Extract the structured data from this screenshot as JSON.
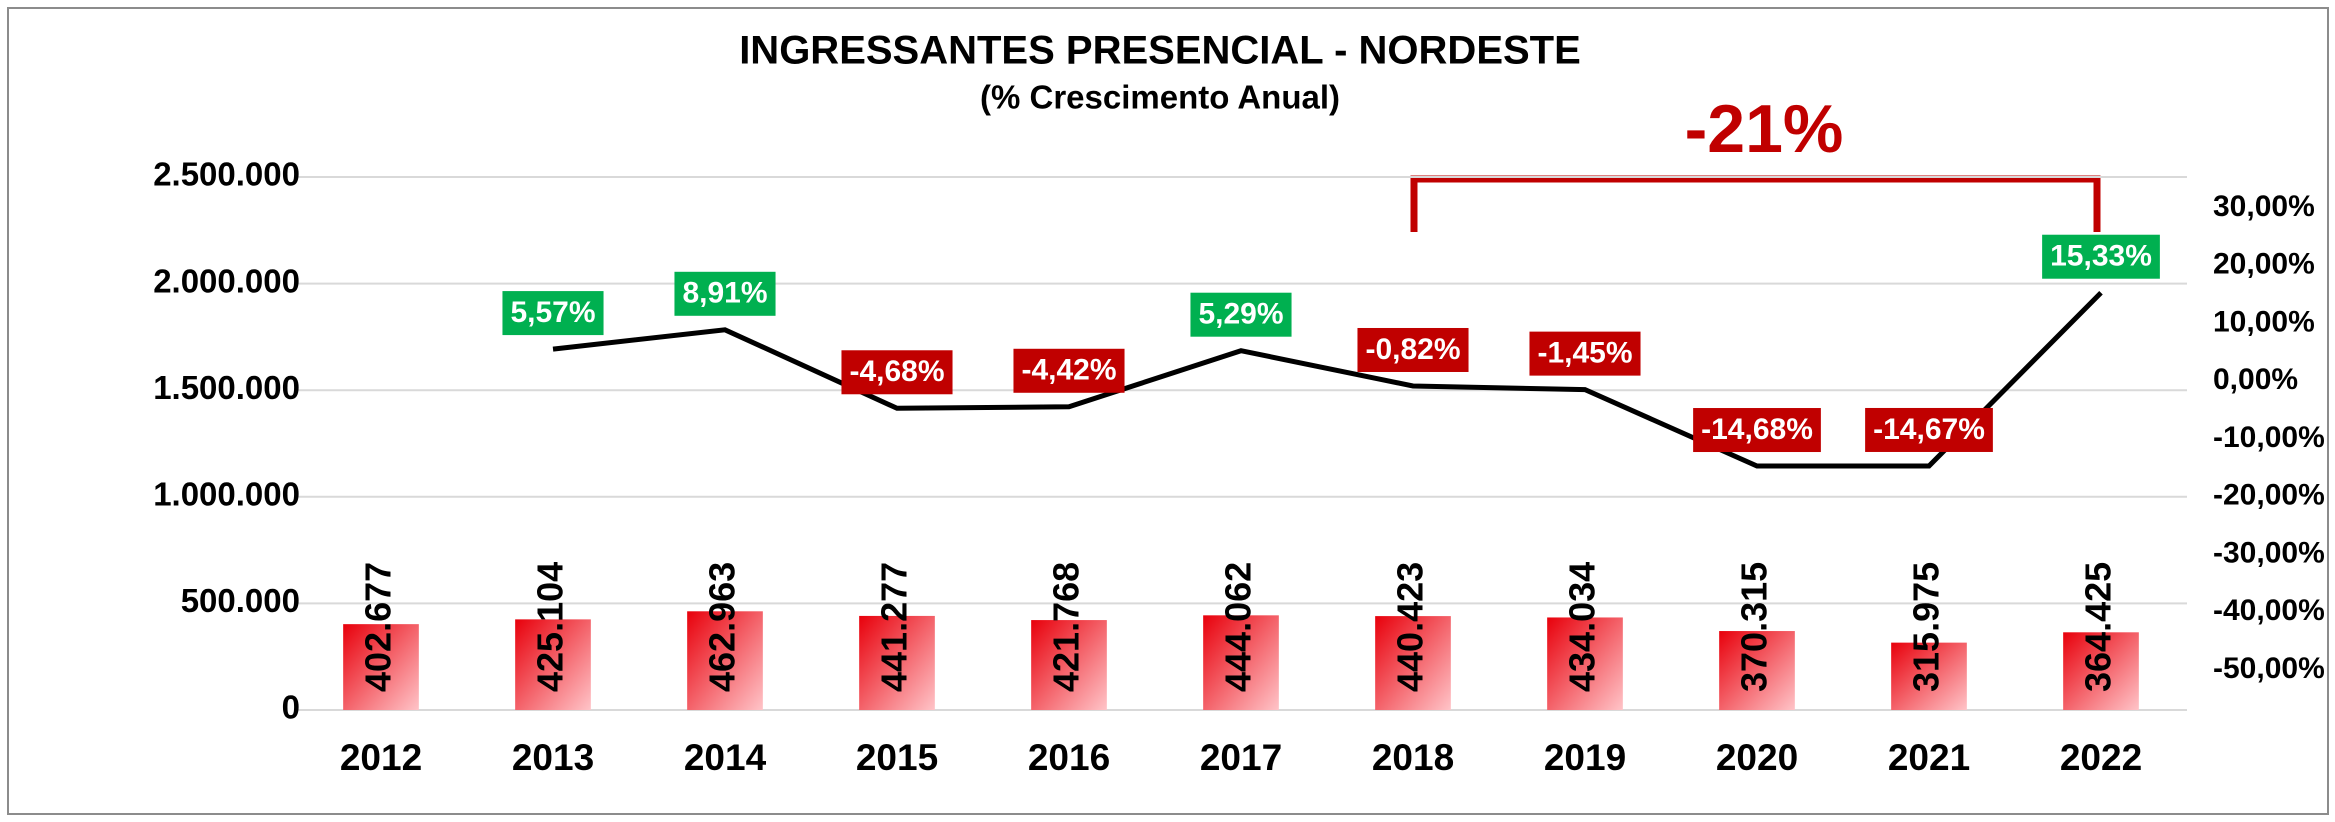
{
  "chart_data": {
    "type": "bar_line",
    "title": "INGRESSANTES PRESENCIAL - NORDESTE",
    "subtitle": "(% Crescimento Anual)",
    "annotation": "-21%",
    "categories": [
      "2012",
      "2013",
      "2014",
      "2015",
      "2016",
      "2017",
      "2018",
      "2019",
      "2020",
      "2021",
      "2022"
    ],
    "series": [
      {
        "name": "Ingressantes",
        "type": "bar",
        "color": "#e8000b",
        "values": [
          402677,
          425104,
          462963,
          441277,
          421768,
          444062,
          440423,
          434034,
          370315,
          315975,
          364425
        ],
        "value_labels": [
          "402.677",
          "425.104",
          "462.963",
          "441.277",
          "421.768",
          "444.062",
          "440.423",
          "434.034",
          "370.315",
          "315.975",
          "364.425"
        ]
      },
      {
        "name": "% Crescimento Anual",
        "type": "line",
        "axis": "y2",
        "color": "#000000",
        "values": [
          null,
          5.57,
          8.91,
          -4.68,
          -4.42,
          5.29,
          -0.82,
          -1.45,
          -14.68,
          -14.67,
          15.33
        ],
        "value_labels": [
          null,
          "5,57%",
          "8,91%",
          "-4,68%",
          "-4,42%",
          "5,29%",
          "-0,82%",
          "-1,45%",
          "-14,68%",
          "-14,67%",
          "15,33%"
        ]
      }
    ],
    "positive_color": "#00b050",
    "negative_color": "#c00000",
    "ylim": [
      0,
      2500000
    ],
    "yticks": [
      0,
      {
        "value": 500000,
        "label": "500.000"
      },
      {
        "value": 1000000,
        "label": "1.000.000"
      },
      {
        "value": 1500000,
        "label": "1.500.000"
      },
      {
        "value": 2000000,
        "label": "2.000.000"
      },
      {
        "value": 2500000,
        "label": "2.500.000"
      }
    ],
    "y2lim": [
      -50,
      30
    ],
    "y2ticks": [
      {
        "value": -50,
        "label": "-50,00%"
      },
      {
        "value": -40,
        "label": "-40,00%"
      },
      {
        "value": -30,
        "label": "-30,00%"
      },
      {
        "value": -20,
        "label": "-20,00%"
      },
      {
        "value": -10,
        "label": "-10,00%"
      },
      {
        "value": 0,
        "label": "0,00%"
      },
      {
        "value": 10,
        "label": "10,00%"
      },
      {
        "value": 20,
        "label": "20,00%"
      },
      {
        "value": 30,
        "label": "30,00%"
      }
    ],
    "grid": true
  }
}
